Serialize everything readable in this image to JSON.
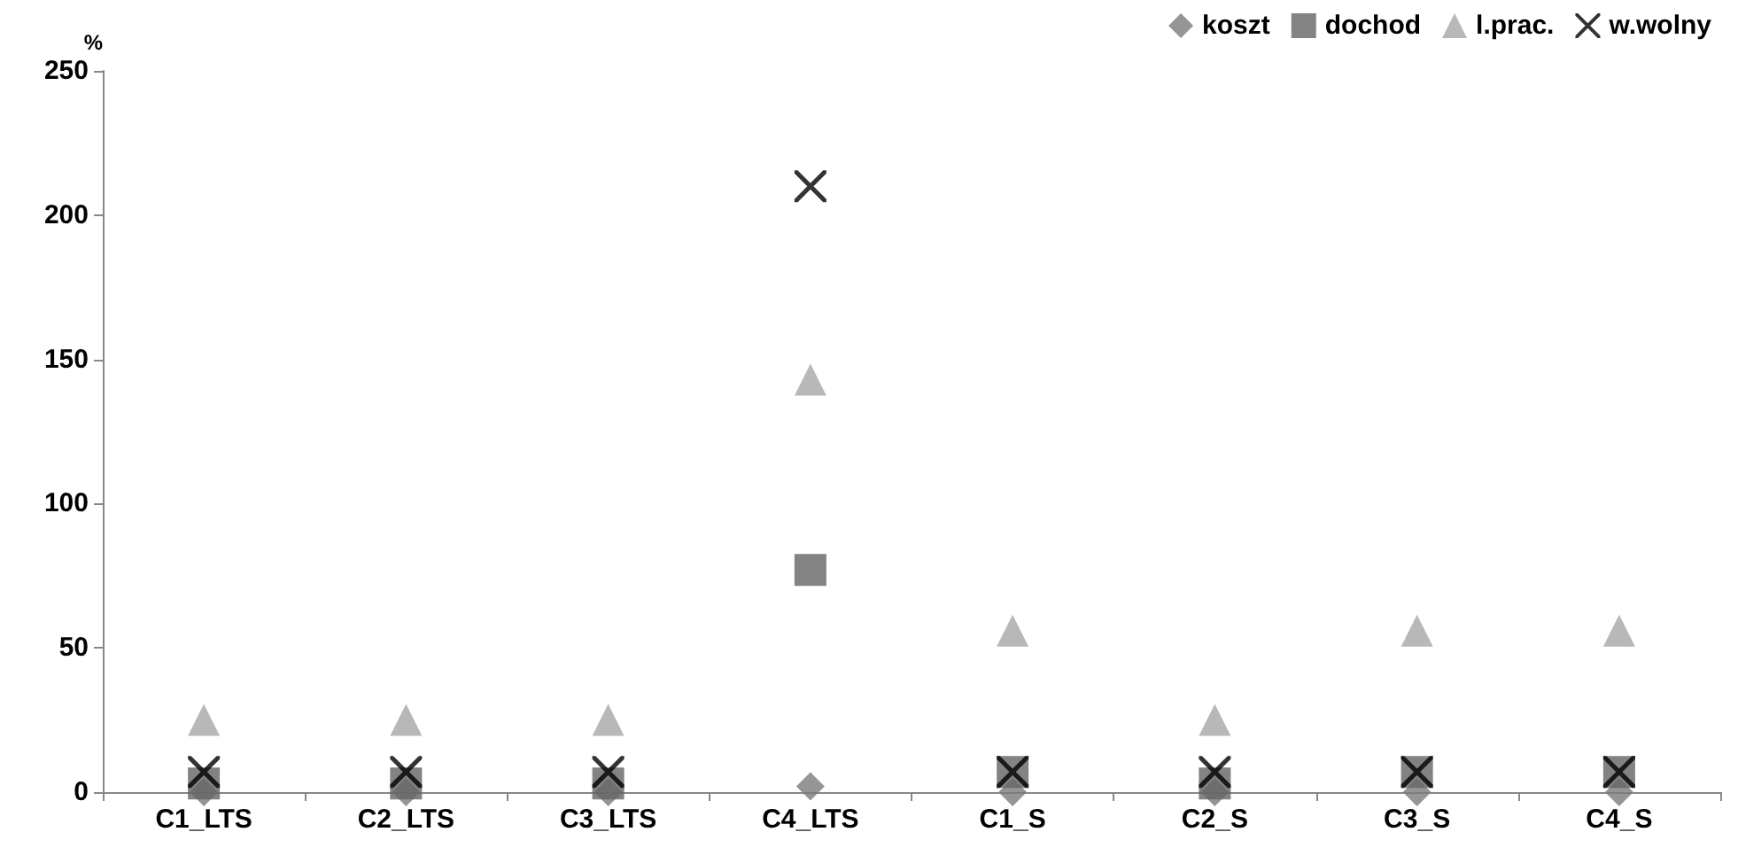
{
  "chart_data": {
    "type": "scatter",
    "ylabel": "%",
    "categories": [
      "C1_LTS",
      "C2_LTS",
      "C3_LTS",
      "C4_LTS",
      "C1_S",
      "C2_S",
      "C3_S",
      "C4_S"
    ],
    "ylim": [
      0,
      250
    ],
    "yticks": [
      0,
      50,
      100,
      150,
      200,
      250
    ],
    "grid": false,
    "legend": "top right",
    "series": [
      {
        "name": "koszt",
        "color": "#7a7a7a",
        "marker": "diamond",
        "values": [
          0,
          0,
          0,
          2,
          0,
          0,
          0,
          0
        ]
      },
      {
        "name": "dochod",
        "color": "#646464",
        "marker": "square",
        "values": [
          3,
          3,
          3,
          77,
          7,
          3,
          7,
          7
        ]
      },
      {
        "name": "l.prac.",
        "color": "#a6a6a6",
        "marker": "triangle",
        "values": [
          25,
          25,
          25,
          143,
          56,
          25,
          56,
          56
        ]
      },
      {
        "name": "w.wolny",
        "color": "#000000",
        "marker": "cross",
        "values": [
          7,
          7,
          7,
          210,
          7,
          7,
          7,
          7
        ]
      }
    ]
  }
}
